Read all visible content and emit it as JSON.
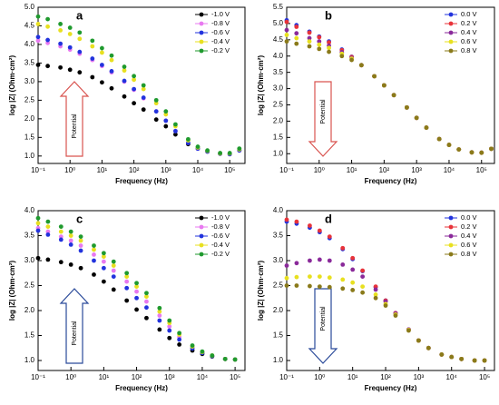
{
  "chart_data": [
    {
      "type": "scatter",
      "panel": "a",
      "xlabel": "Frequency (Hz)",
      "ylabel": "log |Z| (Ohm·cm²)",
      "xscale": "log",
      "x": [
        0.1,
        0.2,
        0.5,
        1,
        2,
        5,
        10,
        20,
        50,
        100,
        200,
        500,
        1000,
        2000,
        5000,
        10000,
        20000,
        50000,
        100000,
        200000
      ],
      "xlim": [
        0.1,
        300000
      ],
      "xticks": [
        {
          "value": 0.1,
          "label": "10⁻¹"
        },
        {
          "value": 1,
          "label": "10⁰"
        },
        {
          "value": 10,
          "label": "10¹"
        },
        {
          "value": 100,
          "label": "10²"
        },
        {
          "value": 1000,
          "label": "10³"
        },
        {
          "value": 10000,
          "label": "10⁴"
        },
        {
          "value": 100000,
          "label": "10⁵"
        }
      ],
      "ylim": [
        0.8,
        5.0
      ],
      "yticks": [
        {
          "value": 1,
          "label": "1.0"
        },
        1.5,
        {
          "value": 2,
          "label": "2.0"
        },
        2.5,
        {
          "value": 3,
          "label": "3.0"
        },
        3.5,
        {
          "value": 4,
          "label": "4.0"
        },
        4.5,
        {
          "value": 5,
          "label": "5.0"
        }
      ],
      "legend": "upper right",
      "annotation": {
        "text": "Potential",
        "direction": "up",
        "color": "#d9534f"
      },
      "series": [
        {
          "name": "-1.0 V",
          "color": "#000000",
          "values": [
            3.45,
            3.42,
            3.38,
            3.32,
            3.25,
            3.12,
            2.98,
            2.82,
            2.6,
            2.42,
            2.25,
            1.98,
            1.8,
            1.58,
            1.32,
            1.2,
            1.12,
            1.06,
            1.05,
            1.15
          ]
        },
        {
          "name": "-0.8 V",
          "color": "#e879f0",
          "values": [
            4.1,
            4.04,
            3.95,
            3.86,
            3.75,
            3.58,
            3.42,
            3.25,
            3.0,
            2.78,
            2.55,
            2.2,
            1.95,
            1.67,
            1.35,
            1.2,
            1.12,
            1.06,
            1.05,
            1.15
          ]
        },
        {
          "name": "-0.6 V",
          "color": "#2233dd",
          "values": [
            4.2,
            4.12,
            4.02,
            3.92,
            3.8,
            3.62,
            3.45,
            3.28,
            3.02,
            2.8,
            2.57,
            2.2,
            1.95,
            1.67,
            1.35,
            1.2,
            1.12,
            1.06,
            1.05,
            1.15
          ]
        },
        {
          "name": "-0.4 V",
          "color": "#e8e020",
          "values": [
            4.55,
            4.48,
            4.38,
            4.28,
            4.15,
            3.95,
            3.78,
            3.58,
            3.3,
            3.05,
            2.8,
            2.42,
            2.12,
            1.8,
            1.42,
            1.23,
            1.14,
            1.07,
            1.07,
            1.18
          ]
        },
        {
          "name": "-0.2 V",
          "color": "#1f9a2e",
          "values": [
            4.75,
            4.68,
            4.55,
            4.45,
            4.32,
            4.1,
            3.9,
            3.7,
            3.4,
            3.15,
            2.9,
            2.5,
            2.2,
            1.85,
            1.45,
            1.25,
            1.15,
            1.08,
            1.08,
            1.2
          ]
        }
      ]
    },
    {
      "type": "scatter",
      "panel": "b",
      "xlabel": "Frequency (Hz)",
      "ylabel": "log |Z| (Ohm·cm²)",
      "xscale": "log",
      "x": [
        0.1,
        0.2,
        0.5,
        1,
        2,
        5,
        10,
        20,
        50,
        100,
        200,
        500,
        1000,
        2000,
        5000,
        10000,
        20000,
        50000,
        100000,
        200000
      ],
      "xlim": [
        0.1,
        250000
      ],
      "xticks": [
        {
          "value": 0.1,
          "label": "10⁻¹"
        },
        {
          "value": 1,
          "label": "10⁰"
        },
        {
          "value": 10,
          "label": "10¹"
        },
        {
          "value": 100,
          "label": "10²"
        },
        {
          "value": 1000,
          "label": "10³"
        },
        {
          "value": 10000,
          "label": "10⁴"
        },
        {
          "value": 100000,
          "label": "10⁵"
        }
      ],
      "ylim": [
        0.7,
        5.5
      ],
      "yticks": [
        {
          "value": 1,
          "label": "1.0"
        },
        1.5,
        {
          "value": 2,
          "label": "2.0"
        },
        2.5,
        {
          "value": 3,
          "label": "3.0"
        },
        3.5,
        {
          "value": 4,
          "label": "4.0"
        },
        4.5,
        {
          "value": 5,
          "label": "5.0"
        },
        5.5
      ],
      "legend": "upper right",
      "annotation": {
        "text": "Potential",
        "direction": "down",
        "color": "#d9534f"
      },
      "series": [
        {
          "name": "0.0 V",
          "color": "#2233dd",
          "values": [
            5.1,
            4.95,
            4.75,
            4.6,
            4.45,
            4.2,
            3.98,
            3.72,
            3.38,
            3.1,
            2.8,
            2.42,
            2.1,
            1.8,
            1.45,
            1.27,
            1.13,
            1.04,
            1.03,
            1.15
          ]
        },
        {
          "name": "0.2 V",
          "color": "#e8333a",
          "values": [
            5.05,
            4.9,
            4.72,
            4.58,
            4.42,
            4.18,
            3.97,
            3.72,
            3.38,
            3.1,
            2.8,
            2.42,
            2.1,
            1.8,
            1.45,
            1.27,
            1.13,
            1.04,
            1.03,
            1.15
          ]
        },
        {
          "name": "0.4 V",
          "color": "#8a2a9a",
          "values": [
            4.8,
            4.7,
            4.55,
            4.45,
            4.32,
            4.12,
            3.94,
            3.72,
            3.38,
            3.1,
            2.8,
            2.42,
            2.1,
            1.8,
            1.45,
            1.27,
            1.13,
            1.04,
            1.03,
            1.15
          ]
        },
        {
          "name": "0.6 V",
          "color": "#e8e020",
          "values": [
            4.65,
            4.55,
            4.45,
            4.35,
            4.25,
            4.07,
            3.92,
            3.72,
            3.38,
            3.1,
            2.8,
            2.42,
            2.1,
            1.8,
            1.45,
            1.27,
            1.13,
            1.04,
            1.03,
            1.15
          ]
        },
        {
          "name": "0.8 V",
          "color": "#8a7a1a",
          "values": [
            4.45,
            4.38,
            4.3,
            4.22,
            4.13,
            4.0,
            3.88,
            3.72,
            3.38,
            3.1,
            2.8,
            2.42,
            2.1,
            1.8,
            1.45,
            1.27,
            1.13,
            1.04,
            1.03,
            1.15
          ]
        }
      ]
    },
    {
      "type": "scatter",
      "panel": "c",
      "xlabel": "Frequency (Hz)",
      "ylabel": "log |Z| (Ohm·cm²)",
      "xscale": "log",
      "x": [
        0.1,
        0.2,
        0.5,
        1,
        2,
        5,
        10,
        20,
        50,
        100,
        200,
        500,
        1000,
        2000,
        5000,
        10000,
        20000,
        50000,
        100000
      ],
      "xlim": [
        0.1,
        200000
      ],
      "xticks": [
        {
          "value": 0.1,
          "label": "10⁻¹"
        },
        {
          "value": 1,
          "label": "10⁰"
        },
        {
          "value": 10,
          "label": "10¹"
        },
        {
          "value": 100,
          "label": "10²"
        },
        {
          "value": 1000,
          "label": "10³"
        },
        {
          "value": 10000,
          "label": "10⁴"
        },
        {
          "value": 100000,
          "label": "10⁵"
        }
      ],
      "ylim": [
        0.8,
        4.0
      ],
      "yticks": [
        {
          "value": 1,
          "label": "1.0"
        },
        1.5,
        {
          "value": 2,
          "label": "2.0"
        },
        2.5,
        {
          "value": 3,
          "label": "3.0"
        },
        3.5,
        {
          "value": 4,
          "label": "4.0"
        }
      ],
      "legend": "upper right",
      "annotation": {
        "text": "Potential",
        "direction": "up",
        "color": "#2a4a9a"
      },
      "series": [
        {
          "name": "-1.0 V",
          "color": "#000000",
          "values": [
            3.05,
            3.02,
            2.97,
            2.92,
            2.85,
            2.72,
            2.58,
            2.42,
            2.2,
            2.02,
            1.85,
            1.62,
            1.45,
            1.32,
            1.2,
            1.13,
            1.08,
            1.03,
            1.02
          ]
        },
        {
          "name": "-0.8 V",
          "color": "#e879f0",
          "values": [
            3.65,
            3.58,
            3.48,
            3.4,
            3.3,
            3.12,
            2.98,
            2.8,
            2.58,
            2.38,
            2.18,
            1.9,
            1.68,
            1.47,
            1.26,
            1.16,
            1.09,
            1.03,
            1.02
          ]
        },
        {
          "name": "-0.6 V",
          "color": "#2233dd",
          "values": [
            3.6,
            3.52,
            3.42,
            3.32,
            3.2,
            3.0,
            2.85,
            2.68,
            2.45,
            2.25,
            2.06,
            1.8,
            1.6,
            1.42,
            1.24,
            1.15,
            1.09,
            1.03,
            1.02
          ]
        },
        {
          "name": "-0.4 V",
          "color": "#e8e020",
          "values": [
            3.75,
            3.68,
            3.58,
            3.5,
            3.4,
            3.22,
            3.08,
            2.9,
            2.68,
            2.48,
            2.28,
            1.98,
            1.75,
            1.52,
            1.28,
            1.17,
            1.1,
            1.03,
            1.02
          ]
        },
        {
          "name": "-0.2 V",
          "color": "#1f9a2e",
          "values": [
            3.85,
            3.78,
            3.68,
            3.58,
            3.48,
            3.3,
            3.15,
            2.98,
            2.75,
            2.55,
            2.35,
            2.05,
            1.8,
            1.55,
            1.3,
            1.18,
            1.1,
            1.03,
            1.02
          ]
        }
      ]
    },
    {
      "type": "scatter",
      "panel": "d",
      "xlabel": "Frequency (Hz)",
      "ylabel": "log |Z| (Ohm·cm²)",
      "xscale": "log",
      "x": [
        0.1,
        0.2,
        0.5,
        1,
        2,
        5,
        10,
        20,
        50,
        100,
        200,
        500,
        1000,
        2000,
        5000,
        10000,
        20000,
        50000,
        100000
      ],
      "xlim": [
        0.1,
        200000
      ],
      "xticks": [
        {
          "value": 0.1,
          "label": "10⁻¹"
        },
        {
          "value": 1,
          "label": "10⁰"
        },
        {
          "value": 10,
          "label": "10¹"
        },
        {
          "value": 100,
          "label": "10²"
        },
        {
          "value": 1000,
          "label": "10³"
        },
        {
          "value": 10000,
          "label": "10⁴"
        },
        {
          "value": 100000,
          "label": "10⁵"
        }
      ],
      "ylim": [
        0.8,
        4.0
      ],
      "yticks": [
        {
          "value": 1,
          "label": "1.0"
        },
        1.5,
        {
          "value": 2,
          "label": "2.0"
        },
        2.5,
        {
          "value": 3,
          "label": "3.0"
        },
        3.5,
        {
          "value": 4,
          "label": "4.0"
        }
      ],
      "legend": "upper right",
      "annotation": {
        "text": "Potential",
        "direction": "down",
        "color": "#2a4a9a"
      },
      "series": [
        {
          "name": "0.0 V",
          "color": "#2233dd",
          "values": [
            3.78,
            3.74,
            3.66,
            3.57,
            3.45,
            3.23,
            3.03,
            2.79,
            2.47,
            2.2,
            1.95,
            1.62,
            1.4,
            1.25,
            1.12,
            1.07,
            1.03,
            1.0,
            1.0
          ]
        },
        {
          "name": "0.2 V",
          "color": "#e8333a",
          "values": [
            3.82,
            3.78,
            3.7,
            3.6,
            3.48,
            3.25,
            3.05,
            2.8,
            2.48,
            2.2,
            1.95,
            1.62,
            1.4,
            1.25,
            1.12,
            1.07,
            1.03,
            1.0,
            1.0
          ]
        },
        {
          "name": "0.4 V",
          "color": "#8a2a9a",
          "values": [
            2.9,
            2.95,
            3.0,
            3.02,
            3.0,
            2.92,
            2.82,
            2.68,
            2.42,
            2.18,
            1.94,
            1.62,
            1.4,
            1.25,
            1.12,
            1.07,
            1.03,
            1.0,
            1.0
          ]
        },
        {
          "name": "0.6 V",
          "color": "#e8e020",
          "values": [
            2.65,
            2.67,
            2.68,
            2.68,
            2.66,
            2.62,
            2.56,
            2.48,
            2.32,
            2.13,
            1.92,
            1.61,
            1.4,
            1.25,
            1.12,
            1.07,
            1.03,
            1.0,
            1.0
          ]
        },
        {
          "name": "0.8 V",
          "color": "#8a7a1a",
          "values": [
            2.5,
            2.5,
            2.49,
            2.48,
            2.47,
            2.44,
            2.41,
            2.36,
            2.25,
            2.1,
            1.9,
            1.6,
            1.4,
            1.25,
            1.12,
            1.07,
            1.03,
            1.0,
            1.0
          ]
        }
      ]
    }
  ]
}
